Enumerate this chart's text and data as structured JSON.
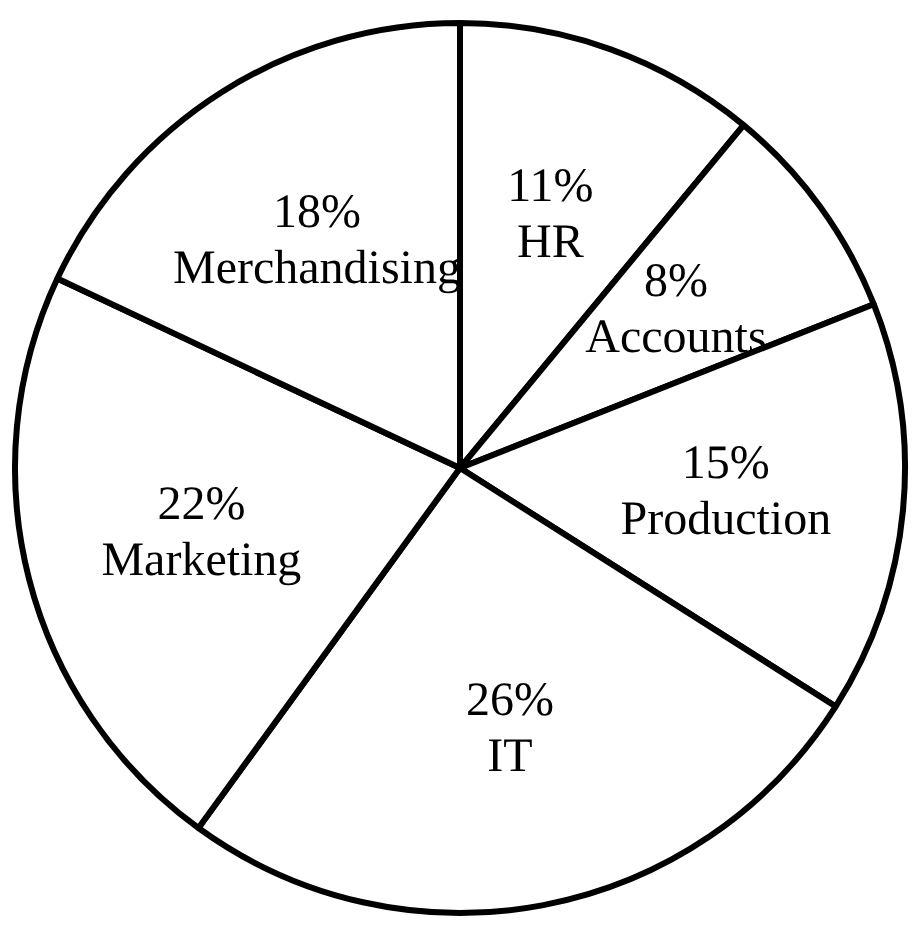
{
  "chart_data": {
    "type": "pie",
    "categories": [
      "HR",
      "Accounts",
      "Production",
      "IT",
      "Marketing",
      "Merchandising"
    ],
    "values": [
      11,
      8,
      15,
      26,
      22,
      18
    ],
    "value_labels": [
      "11%",
      "8%",
      "15%",
      "26%",
      "22%",
      "18%"
    ],
    "colors": [
      "#ffffff",
      "#ffffff",
      "#ffffff",
      "#ffffff",
      "#ffffff",
      "#ffffff"
    ],
    "legend": false
  }
}
